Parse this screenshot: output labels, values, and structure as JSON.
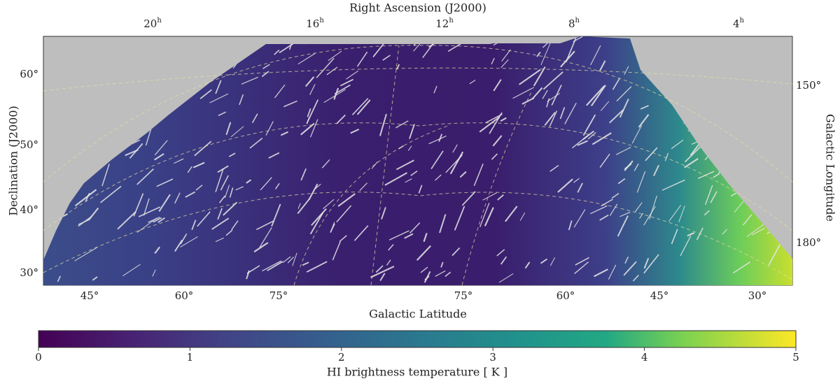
{
  "map": {
    "top_axis": {
      "label": "Right Ascension (J2000)",
      "ticks": [
        "20",
        "16",
        "12",
        "8",
        "4"
      ],
      "unit": "h"
    },
    "left_axis": {
      "label": "Declination (J2000)",
      "ticks": [
        "60°",
        "50°",
        "40°",
        "30°"
      ]
    },
    "right_axis": {
      "label": "Galactic Longitude",
      "ticks": [
        "150°",
        "180°"
      ]
    },
    "bottom_axis": {
      "label": "Galactic Latitude",
      "ticks": [
        "45°",
        "60°",
        "75°",
        "75°",
        "60°",
        "45°",
        "30°"
      ]
    }
  },
  "colorbar": {
    "label": "HI brightness temperature [ K ]",
    "lim": [
      0,
      5
    ],
    "ticks": [
      0,
      1,
      2,
      3,
      4,
      5
    ],
    "colormap": "viridis"
  }
}
